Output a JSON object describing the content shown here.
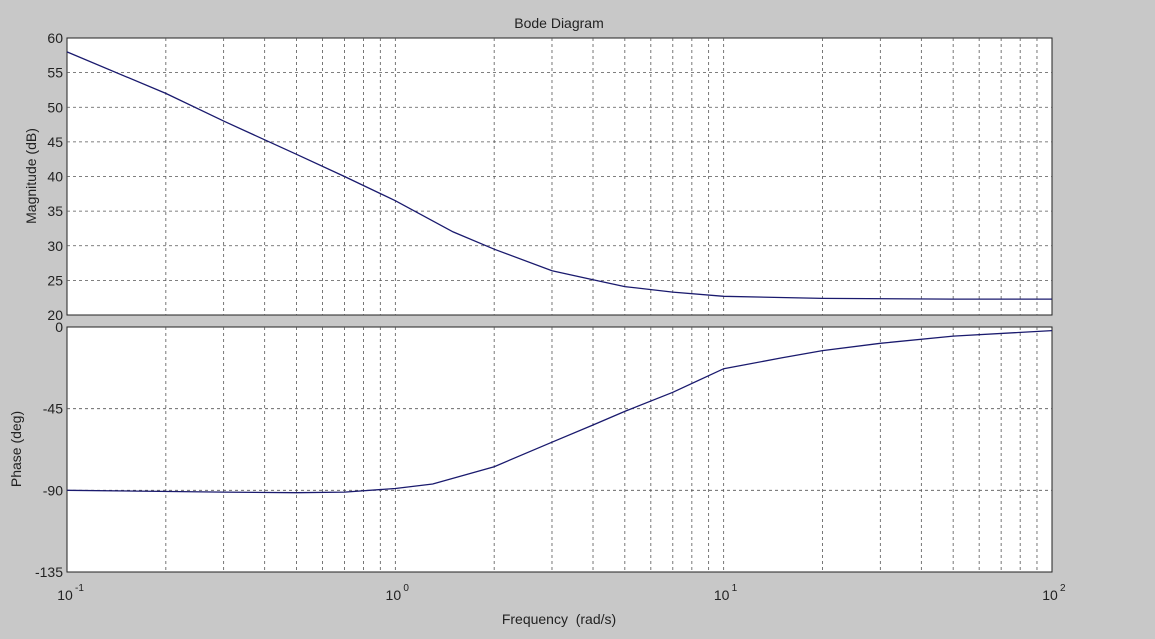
{
  "chart_data": {
    "type": "line",
    "title": "Bode Diagram",
    "xlabel": "Frequency  (rad/s)",
    "x_scale": "log",
    "xlim": [
      0.1,
      100
    ],
    "x_ticks": [
      {
        "value": 0.1,
        "base": "10",
        "exp": "-1"
      },
      {
        "value": 1,
        "base": "10",
        "exp": "0"
      },
      {
        "value": 10,
        "base": "10",
        "exp": "1"
      },
      {
        "value": 100,
        "base": "10",
        "exp": "2"
      }
    ],
    "grid": true,
    "line_color": "#1a1a6e",
    "panels": [
      {
        "ylabel": "Magnitude (dB)",
        "ylim": [
          20,
          60
        ],
        "y_ticks": [
          20,
          25,
          30,
          35,
          40,
          45,
          50,
          55,
          60
        ],
        "y_tick_labels": [
          "20",
          "25",
          "30",
          "35",
          "40",
          "45",
          "50",
          "55",
          "60"
        ],
        "x": [
          0.1,
          0.2,
          0.3,
          0.5,
          0.7,
          1,
          1.5,
          2,
          3,
          4,
          5,
          7,
          10,
          20,
          50,
          100
        ],
        "y": [
          58,
          52,
          48,
          43.2,
          40,
          36.5,
          32,
          29.5,
          26.4,
          25.1,
          24.1,
          23.3,
          22.7,
          22.4,
          22.3,
          22.3
        ]
      },
      {
        "ylabel": "Phase (deg)",
        "ylim": [
          -135,
          0
        ],
        "y_ticks": [
          -135,
          -90,
          -45,
          0
        ],
        "y_tick_labels": [
          "-135",
          "-90",
          "-45",
          "0"
        ],
        "x": [
          0.1,
          0.3,
          0.5,
          0.7,
          1,
          1.3,
          2,
          3,
          4,
          5,
          7,
          10,
          15,
          20,
          30,
          50,
          100
        ],
        "y": [
          -90,
          -91,
          -91.3,
          -91,
          -89,
          -86.5,
          -77,
          -63.5,
          -54,
          -46.5,
          -36,
          -23,
          -17,
          -13,
          -9,
          -5,
          -2
        ]
      }
    ]
  }
}
